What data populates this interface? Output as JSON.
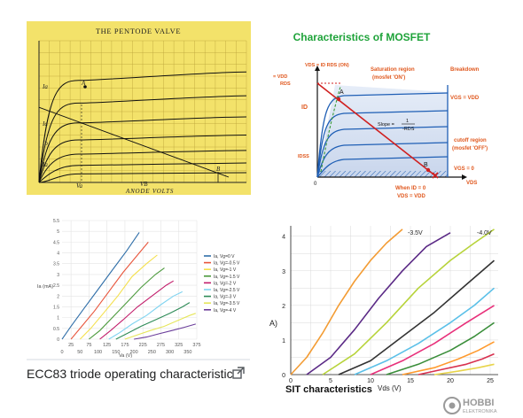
{
  "chart_data": [
    {
      "type": "line",
      "title": "THE PENTODE VALVE",
      "xlabel": "ANODE VOLTS",
      "ylabel": "",
      "axis_marks": {
        "x": [
          "Va",
          "VB"
        ],
        "y": [
          "Ia",
          "Ia",
          "Ib",
          "Ia"
        ]
      },
      "point_labels": [
        "A",
        "B"
      ],
      "grid": true
    },
    {
      "type": "line",
      "title": "Characteristics of MOSFET",
      "xlabel": "VDS",
      "ylabel": "ID",
      "annotations": {
        "top_label": "VDS = ID RDS (ON)",
        "saturation": [
          "Saturation region",
          "(mosfet 'ON')"
        ],
        "breakdown": "Breakdown",
        "vgs_vdd": "VGS = VDD",
        "slope_prefix": "Slope =",
        "slope_num": "1",
        "slope_den": "-RDS",
        "cutoff": [
          "cutoff region",
          "(mosfet 'OFF')"
        ],
        "vgs_zero": "VGS = 0",
        "y_intercept": [
          "= VDD",
          "RDS"
        ],
        "idss": "IDSS",
        "origin": "0",
        "point_a": "A",
        "point_b": "B",
        "when": [
          "When ID = 0",
          "VDS = VDD"
        ]
      }
    },
    {
      "type": "line",
      "title": "",
      "xlabel": "Va (V)",
      "ylabel": "Ia (mA)",
      "ylim": [
        0,
        5.5
      ],
      "xlim": [
        0,
        375
      ],
      "y_ticks": [
        0,
        0.5,
        1,
        1.5,
        2,
        2.5,
        3,
        3.5,
        4,
        4.5,
        5,
        5.5
      ],
      "x_ticks_bottom": [
        0,
        50,
        100,
        150,
        200,
        250,
        300,
        350
      ],
      "x_ticks_top": [
        25,
        75,
        125,
        175,
        225,
        275,
        325,
        375
      ],
      "series": [
        {
          "name": "Ia, Vg=0 V",
          "color": "#2f6ea8",
          "x": [
            0,
            25,
            60,
            100,
            140,
            180,
            215
          ],
          "y": [
            0,
            0.6,
            1.4,
            2.3,
            3.2,
            4.1,
            4.95
          ]
        },
        {
          "name": "Ia, Vg=-0.5 V",
          "color": "#e8553c",
          "x": [
            25,
            55,
            90,
            130,
            170,
            210,
            240
          ],
          "y": [
            0,
            0.6,
            1.3,
            2.2,
            3.1,
            3.9,
            4.5
          ]
        },
        {
          "name": "Ia, Vg=-1 V",
          "color": "#f4e04d",
          "x": [
            50,
            80,
            115,
            155,
            195,
            235,
            265
          ],
          "y": [
            0,
            0.5,
            1.2,
            2.0,
            2.9,
            3.5,
            3.9
          ]
        },
        {
          "name": "Ia, Vg=-1.5 V",
          "color": "#4c9a3d",
          "x": [
            75,
            105,
            140,
            180,
            220,
            260,
            285
          ],
          "y": [
            0,
            0.4,
            1.0,
            1.7,
            2.4,
            3.0,
            3.3
          ]
        },
        {
          "name": "Ia, Vg=-2 V",
          "color": "#c21d6b",
          "x": [
            105,
            135,
            170,
            210,
            250,
            290,
            310
          ],
          "y": [
            0,
            0.4,
            0.9,
            1.5,
            2.0,
            2.5,
            2.7
          ]
        },
        {
          "name": "Ia, Vg=-2.5 V",
          "color": "#7fd3f0",
          "x": [
            130,
            160,
            195,
            235,
            275,
            310,
            335
          ],
          "y": [
            0,
            0.3,
            0.7,
            1.1,
            1.6,
            2.0,
            2.2
          ]
        },
        {
          "name": "Ia, Vg=-3 V",
          "color": "#2e8b57",
          "x": [
            150,
            185,
            220,
            260,
            300,
            335,
            355
          ],
          "y": [
            0,
            0.3,
            0.6,
            0.9,
            1.2,
            1.5,
            1.7
          ]
        },
        {
          "name": "Ia, Vg=-3.5 V",
          "color": "#e6e65a",
          "x": [
            175,
            210,
            245,
            285,
            320,
            355,
            372
          ],
          "y": [
            0,
            0.2,
            0.4,
            0.6,
            0.85,
            1.1,
            1.2
          ]
        },
        {
          "name": "Ia, Vg=-4 V",
          "color": "#6a3d9a",
          "x": [
            200,
            235,
            270,
            305,
            340,
            372
          ],
          "y": [
            0,
            0.1,
            0.25,
            0.4,
            0.55,
            0.7
          ]
        }
      ],
      "grid": true,
      "legend": "right"
    },
    {
      "type": "line",
      "title": "SIT characteristics",
      "xlabel": "Vds (V)",
      "ylabel": "A)",
      "ylim": [
        0,
        4.3
      ],
      "xlim": [
        0,
        26
      ],
      "y_ticks": [
        0,
        1,
        2,
        3,
        4
      ],
      "x_ticks": [
        0,
        5,
        10,
        15,
        20,
        25
      ],
      "curve_labels": [
        "-3.5V",
        "-4.0V"
      ],
      "series": [
        {
          "color": "#f39c34",
          "x": [
            0,
            2,
            4,
            6,
            8,
            10,
            12,
            14
          ],
          "y": [
            0,
            0.5,
            1.2,
            2.0,
            2.7,
            3.3,
            3.8,
            4.2
          ]
        },
        {
          "color": "#5b2a86",
          "x": [
            2,
            5,
            8,
            11,
            14,
            17,
            20
          ],
          "y": [
            0,
            0.5,
            1.3,
            2.2,
            3.0,
            3.7,
            4.1
          ]
        },
        {
          "color": "#b7d33a",
          "x": [
            4,
            8,
            12,
            16,
            20,
            23,
            25.5
          ],
          "y": [
            0,
            0.6,
            1.5,
            2.5,
            3.3,
            3.8,
            4.2
          ]
        },
        {
          "color": "#333333",
          "x": [
            6,
            10,
            14,
            18,
            22,
            25.5
          ],
          "y": [
            0,
            0.4,
            1.1,
            1.8,
            2.6,
            3.3
          ]
        },
        {
          "color": "#5bc0e8",
          "x": [
            8,
            12,
            16,
            20,
            23,
            25.5
          ],
          "y": [
            0,
            0.4,
            0.9,
            1.5,
            2.0,
            2.5
          ]
        },
        {
          "color": "#e8307a",
          "x": [
            10,
            14,
            18,
            22,
            25.5
          ],
          "y": [
            0,
            0.4,
            0.9,
            1.5,
            2.0
          ]
        },
        {
          "color": "#3a8e3a",
          "x": [
            12,
            16,
            20,
            23,
            25.5
          ],
          "y": [
            0,
            0.3,
            0.7,
            1.1,
            1.5
          ]
        },
        {
          "color": "#ff9a2e",
          "x": [
            14,
            18,
            21,
            23.5,
            25.5
          ],
          "y": [
            0,
            0.2,
            0.45,
            0.7,
            0.95
          ]
        },
        {
          "color": "#d8314f",
          "x": [
            16,
            19,
            22,
            24,
            25.5
          ],
          "y": [
            0,
            0.15,
            0.3,
            0.45,
            0.6
          ]
        },
        {
          "color": "#e8d44a",
          "x": [
            18,
            21,
            23.5,
            25.5
          ],
          "y": [
            0,
            0.1,
            0.2,
            0.3
          ]
        }
      ],
      "grid": true
    }
  ],
  "captions": {
    "ecc83": "ECC83 triode operating characteristic",
    "logo_text": "HOBBI",
    "logo_sub": "ELEKTRONIKA"
  },
  "colors": {
    "pentode_bg": "#f3e26a",
    "mosfet_title": "#1fa33a",
    "mosfet_label": "#e0581e",
    "mosfet_blue": "#1f5fb5",
    "mosfet_red": "#d02020"
  },
  "icons": {
    "external_link": "external-link-icon",
    "logo": "hobbi-logo-icon"
  }
}
